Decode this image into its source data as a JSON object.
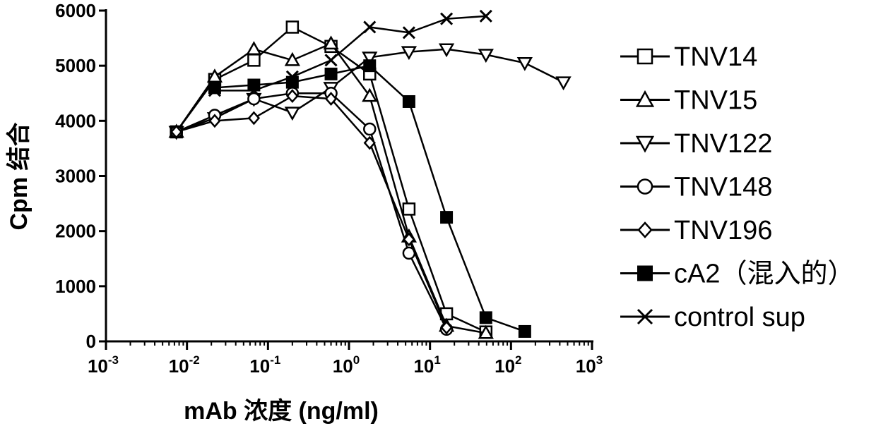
{
  "chart_data": {
    "type": "line",
    "xlabel": "mAb 浓度 (ng/ml)",
    "ylabel": "Cpm 结合",
    "x_scale": "log",
    "xlim": [
      0.001,
      1000
    ],
    "ylim": [
      0,
      6000
    ],
    "grid": false,
    "legend_position": "right",
    "x_ticks": [
      {
        "value": 0.001,
        "base": "10",
        "exp": "-3"
      },
      {
        "value": 0.01,
        "base": "10",
        "exp": "-2"
      },
      {
        "value": 0.1,
        "base": "10",
        "exp": "-1"
      },
      {
        "value": 1,
        "base": "10",
        "exp": "0"
      },
      {
        "value": 10,
        "base": "10",
        "exp": "1"
      },
      {
        "value": 100,
        "base": "10",
        "exp": "2"
      },
      {
        "value": 1000,
        "base": "10",
        "exp": "3"
      }
    ],
    "y_ticks": [
      {
        "value": 0,
        "label": "0"
      },
      {
        "value": 1000,
        "label": "1000"
      },
      {
        "value": 2000,
        "label": "2000"
      },
      {
        "value": 3000,
        "label": "3000"
      },
      {
        "value": 4000,
        "label": "4000"
      },
      {
        "value": 5000,
        "label": "5000"
      },
      {
        "value": 6000,
        "label": "6000"
      }
    ],
    "series": [
      {
        "name": "TNV14",
        "marker": "square-open",
        "x": [
          0.0074,
          0.022,
          0.067,
          0.2,
          0.6,
          1.8,
          5.5,
          16,
          49
        ],
        "y": [
          3800,
          4750,
          5100,
          5700,
          5350,
          4850,
          2400,
          500,
          170
        ]
      },
      {
        "name": "TNV15",
        "marker": "triangle-up-open",
        "x": [
          0.0074,
          0.022,
          0.067,
          0.2,
          0.6,
          1.8,
          5.5,
          16,
          49
        ],
        "y": [
          3800,
          4800,
          5300,
          5100,
          5400,
          4450,
          1900,
          280,
          150
        ]
      },
      {
        "name": "TNV122",
        "marker": "triangle-down-open",
        "x": [
          0.0074,
          0.022,
          0.067,
          0.2,
          0.6,
          1.8,
          5.5,
          16,
          49,
          148,
          444
        ],
        "y": [
          3800,
          4050,
          4400,
          4150,
          4600,
          5150,
          5250,
          5300,
          5200,
          5050,
          4700
        ]
      },
      {
        "name": "TNV148",
        "marker": "circle-open",
        "x": [
          0.0074,
          0.022,
          0.067,
          0.2,
          0.6,
          1.8,
          5.5,
          16
        ],
        "y": [
          3800,
          4100,
          4400,
          4500,
          4500,
          3850,
          1600,
          220
        ]
      },
      {
        "name": "TNV196",
        "marker": "diamond-open",
        "x": [
          0.0074,
          0.022,
          0.067,
          0.2,
          0.6,
          1.8,
          5.5,
          16
        ],
        "y": [
          3800,
          4000,
          4050,
          4450,
          4400,
          3600,
          1850,
          250
        ]
      },
      {
        "name": "cA2（混入的）",
        "marker": "square-filled",
        "x": [
          0.022,
          0.067,
          0.2,
          0.6,
          1.8,
          5.5,
          16,
          49,
          148
        ],
        "y": [
          4600,
          4650,
          4700,
          4850,
          5000,
          4350,
          2250,
          430,
          180
        ]
      },
      {
        "name": "control sup",
        "marker": "x",
        "x": [
          0.022,
          0.067,
          0.2,
          0.6,
          1.8,
          5.5,
          16,
          49
        ],
        "y": [
          4550,
          4550,
          4800,
          5100,
          5700,
          5600,
          5850,
          5900
        ]
      }
    ]
  }
}
